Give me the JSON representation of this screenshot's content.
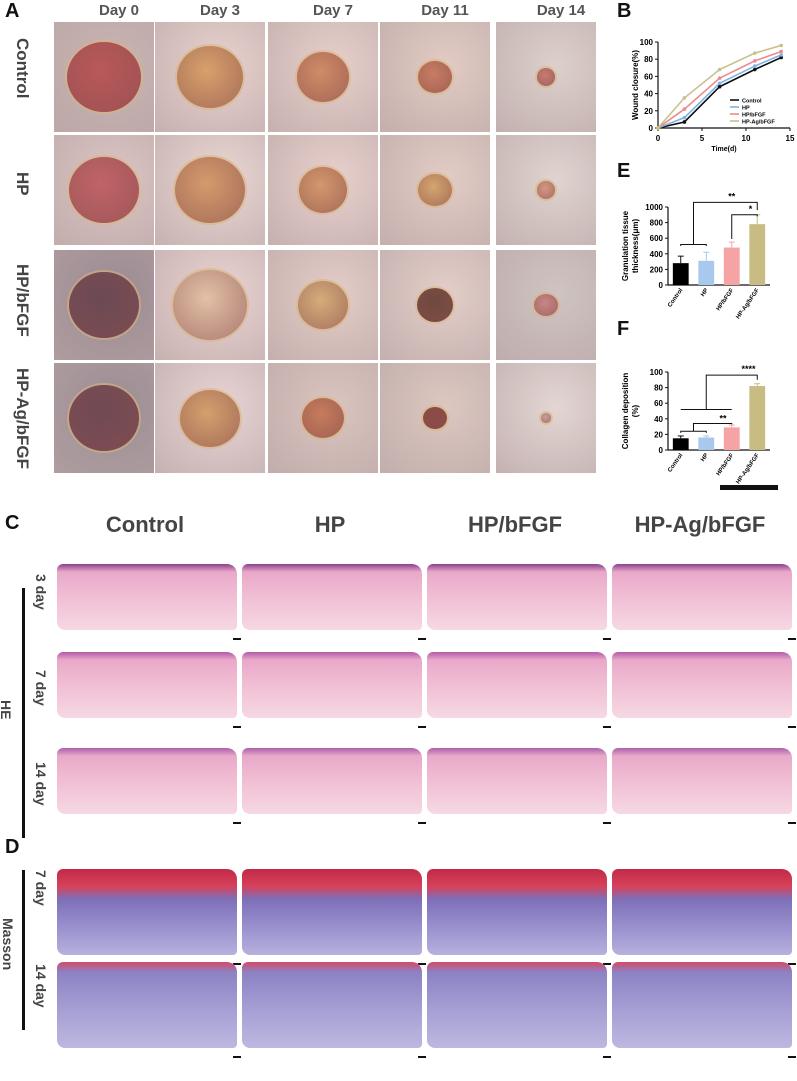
{
  "panels": {
    "A": "A",
    "B": "B",
    "C": "C",
    "D": "D",
    "E": "E",
    "F": "F"
  },
  "photo_grid": {
    "days": [
      "Day 0",
      "Day 3",
      "Day 7",
      "Day 11",
      "Day 14"
    ],
    "groups": [
      "Control",
      "HP",
      "HP/bFGF",
      "HP-Ag/bFGF"
    ]
  },
  "histology": {
    "groups": [
      "Control",
      "HP",
      "HP/bFGF",
      "HP-Ag/bFGF"
    ],
    "he": {
      "stain_label": "HE",
      "days": [
        "3 day",
        "7 day",
        "14 day"
      ]
    },
    "masson": {
      "stain_label": "Masson",
      "days": [
        "7 day",
        "14 day"
      ]
    }
  },
  "chart_data": [
    {
      "type": "line",
      "panel": "B",
      "xlabel": "Time(d)",
      "ylabel": "Wound closure(%)",
      "xlim": [
        0,
        15
      ],
      "ylim": [
        0,
        100
      ],
      "xticks": [
        "0",
        "5",
        "10",
        "15"
      ],
      "yticks": [
        "0",
        "20",
        "40",
        "60",
        "80",
        "100"
      ],
      "x": [
        0,
        3,
        7,
        11,
        14
      ],
      "legend_position": "lower-right",
      "series": [
        {
          "name": "Control",
          "color": "#111111",
          "values": [
            0,
            7,
            48,
            68,
            82
          ]
        },
        {
          "name": "HP",
          "color": "#7fb3e6",
          "values": [
            0,
            12,
            52,
            72,
            85
          ]
        },
        {
          "name": "HP/bFGF",
          "color": "#f08a8a",
          "values": [
            0,
            22,
            58,
            78,
            89
          ]
        },
        {
          "name": "HP-Ag/bFGF",
          "color": "#c9c08a",
          "values": [
            0,
            35,
            68,
            87,
            96
          ]
        }
      ]
    },
    {
      "type": "bar",
      "panel": "E",
      "ylabel": "Granulation tissue thickness(μm)",
      "ylim": [
        0,
        1000
      ],
      "yticks": [
        "0",
        "200",
        "400",
        "600",
        "800",
        "1000"
      ],
      "categories": [
        "Control",
        "HP",
        "HP/bFGF",
        "HP-Ag/bFGF"
      ],
      "values": [
        280,
        310,
        480,
        780
      ],
      "errors": [
        90,
        110,
        70,
        120
      ],
      "colors": [
        "#000000",
        "#a8c8ee",
        "#f5a3a3",
        "#c8bc82"
      ],
      "significance": [
        "**",
        "*"
      ]
    },
    {
      "type": "bar",
      "panel": "F",
      "ylabel": "Collagen deposition (%)",
      "ylim": [
        0,
        100
      ],
      "yticks": [
        "0",
        "20",
        "40",
        "60",
        "80",
        "100"
      ],
      "categories": [
        "Control",
        "HP",
        "HP/bFGF",
        "HP-Ag/bFGF"
      ],
      "values": [
        15,
        16,
        29,
        82
      ],
      "errors": [
        3,
        2,
        3,
        3
      ],
      "colors": [
        "#000000",
        "#a8c8ee",
        "#f5a3a3",
        "#c8bc82"
      ],
      "significance": [
        "****",
        "**"
      ]
    }
  ]
}
